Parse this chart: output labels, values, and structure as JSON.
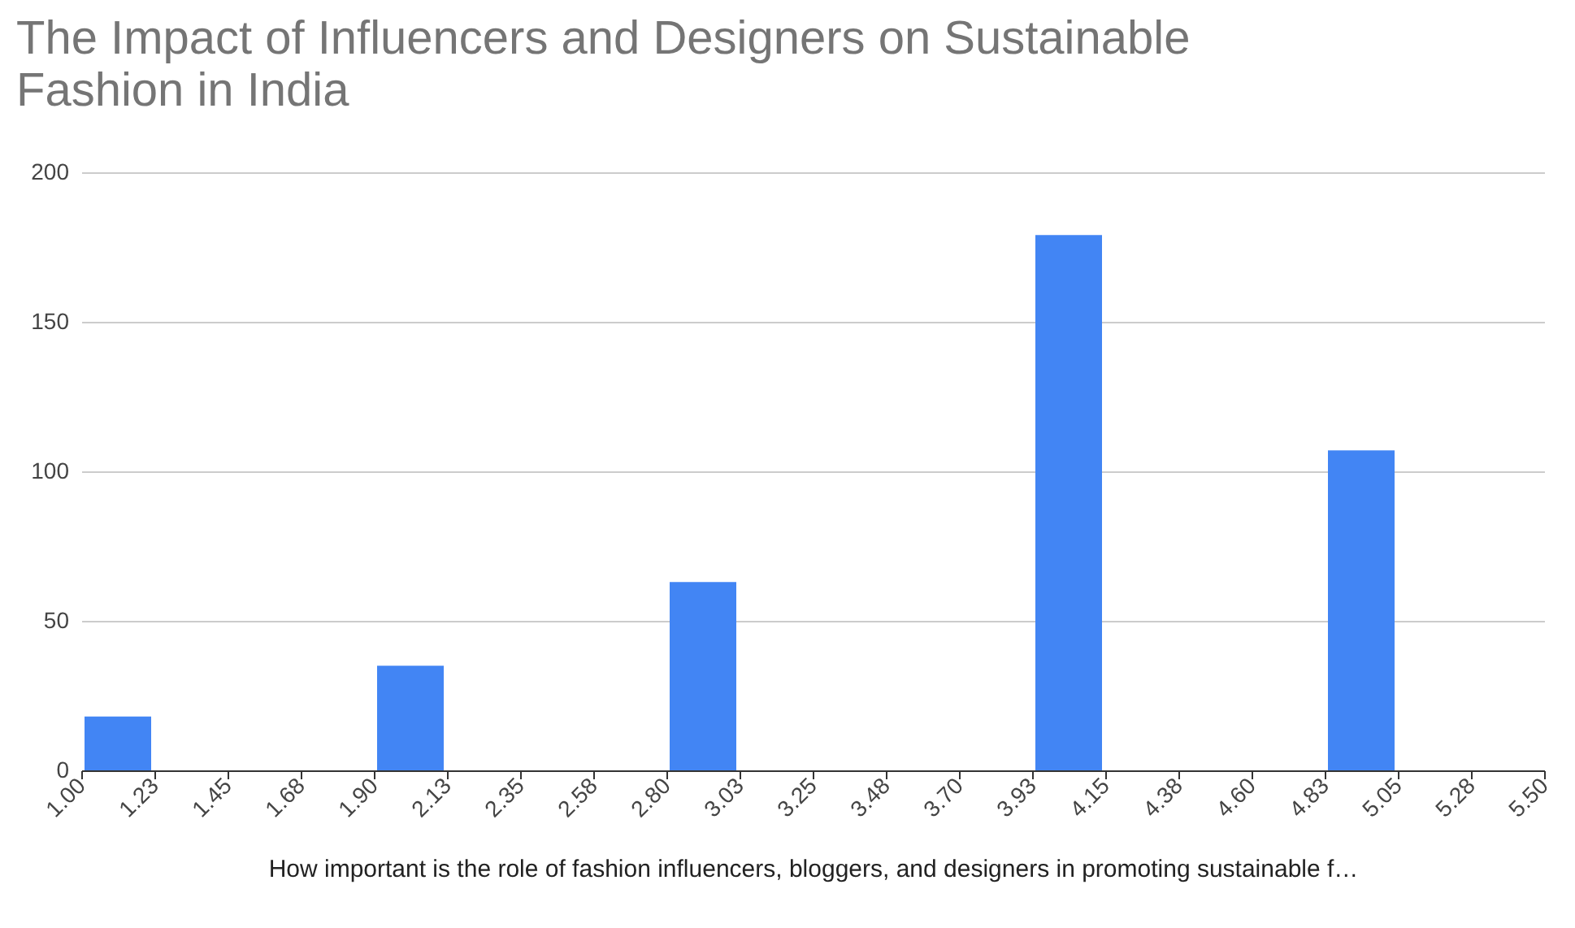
{
  "chart_data": {
    "type": "histogram",
    "title": "The Impact of Influencers and Designers on Sustainable Fashion in India",
    "xlabel": "How important is the role of fashion influencers, bloggers, and designers in promoting sustainable f…",
    "bins": [
      1,
      1.225,
      1.45,
      1.675,
      1.9,
      2.125,
      2.35,
      2.575,
      2.8,
      3.025,
      3.25,
      3.475,
      3.7,
      3.925,
      4.15,
      4.375,
      4.6,
      4.825,
      5.05,
      5.275,
      5.5
    ],
    "values": [
      18,
      0,
      0,
      0,
      35,
      0,
      0,
      0,
      63,
      0,
      0,
      0,
      0,
      179,
      0,
      0,
      0,
      107,
      0,
      0
    ],
    "color": "#4285f4",
    "xlim": [
      1,
      5.5
    ],
    "xticks": [
      {
        "value": 1,
        "label": "1.00"
      },
      {
        "value": 1.225,
        "label": "1.23"
      },
      {
        "value": 1.45,
        "label": "1.45"
      },
      {
        "value": 1.675,
        "label": "1.68"
      },
      {
        "value": 1.9,
        "label": "1.90"
      },
      {
        "value": 2.125,
        "label": "2.13"
      },
      {
        "value": 2.35,
        "label": "2.35"
      },
      {
        "value": 2.575,
        "label": "2.58"
      },
      {
        "value": 2.8,
        "label": "2.80"
      },
      {
        "value": 3.025,
        "label": "3.03"
      },
      {
        "value": 3.25,
        "label": "3.25"
      },
      {
        "value": 3.475,
        "label": "3.48"
      },
      {
        "value": 3.7,
        "label": "3.70"
      },
      {
        "value": 3.925,
        "label": "3.93"
      },
      {
        "value": 4.15,
        "label": "4.15"
      },
      {
        "value": 4.375,
        "label": "4.38"
      },
      {
        "value": 4.6,
        "label": "4.60"
      },
      {
        "value": 4.825,
        "label": "4.83"
      },
      {
        "value": 5.05,
        "label": "5.05"
      },
      {
        "value": 5.275,
        "label": "5.28"
      },
      {
        "value": 5.5,
        "label": "5.50"
      }
    ],
    "ylim": [
      0,
      200
    ],
    "yticks": [
      0,
      50,
      100,
      150,
      200
    ],
    "grid": "y"
  }
}
